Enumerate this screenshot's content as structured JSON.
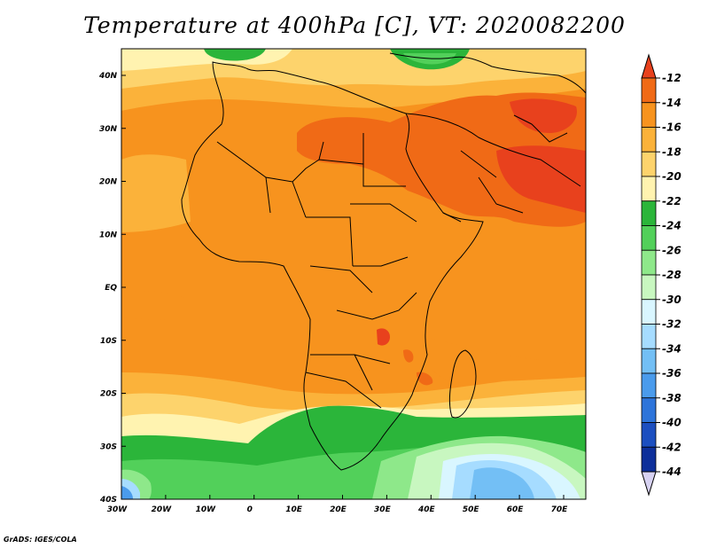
{
  "title": "Temperature at 400hPa [C], VT: 2020082200",
  "credit": "GrADS: IGES/COLA",
  "lon_labels": [
    "30W",
    "20W",
    "10W",
    "0",
    "10E",
    "20E",
    "30E",
    "40E",
    "50E",
    "60E",
    "70E"
  ],
  "lat_labels": [
    "40N",
    "30N",
    "20N",
    "10N",
    "EQ",
    "10S",
    "20S",
    "30S",
    "40S"
  ],
  "colorbar": {
    "labels": [
      "-12",
      "-14",
      "-16",
      "-18",
      "-20",
      "-22",
      "-24",
      "-26",
      "-28",
      "-30",
      "-32",
      "-34",
      "-36",
      "-38",
      "-40",
      "-42",
      "-44"
    ],
    "colors": [
      "#e8411d",
      "#f06a16",
      "#f7931e",
      "#fbb23a",
      "#fdd36c",
      "#fff3b0",
      "#2bb53a",
      "#52d05a",
      "#8ee88a",
      "#c8f7c0",
      "#d9f6ff",
      "#a6dcff",
      "#73bff5",
      "#4a9bec",
      "#2d74da",
      "#1c4fc0",
      "#0d2f9a",
      "#0a1a6a"
    ],
    "top_triangle": "#e8411d",
    "bottom_triangle": "#d7d2f2"
  }
}
